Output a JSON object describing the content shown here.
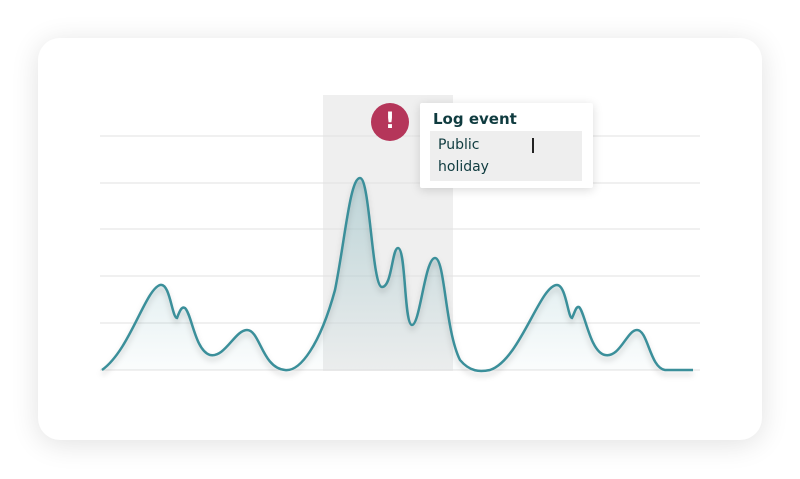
{
  "alert": {
    "icon": "!"
  },
  "popup": {
    "title": "Log event",
    "input": "Public holiday"
  }
}
